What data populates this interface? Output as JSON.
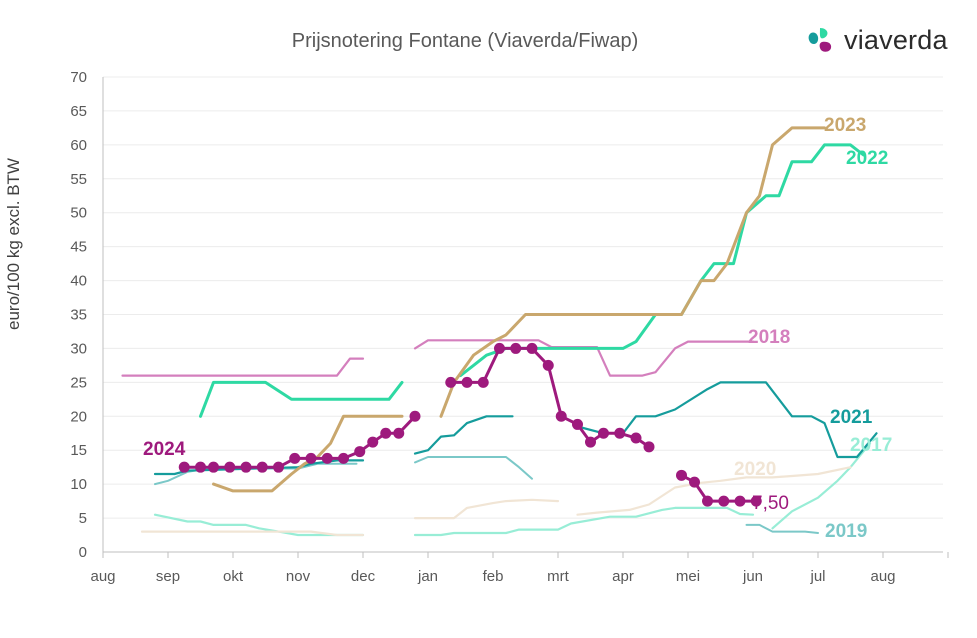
{
  "chart_data": {
    "type": "line",
    "title": "Prijsnotering Fontane (Viaverda/Fiwap)",
    "ylabel": "euro/100 kg excl. BTW",
    "xlabel": "",
    "ylim": [
      0,
      70
    ],
    "yticks": [
      0,
      5,
      10,
      15,
      20,
      25,
      30,
      35,
      40,
      45,
      50,
      55,
      60,
      65,
      70
    ],
    "xlim": [
      0,
      12.9
    ],
    "month_labels": [
      "aug",
      "sep",
      "okt",
      "nov",
      "dec",
      "jan",
      "feb",
      "mrt",
      "apr",
      "mei",
      "jun",
      "jul",
      "aug"
    ],
    "grid": true,
    "logo_text": "viaverda",
    "x_unit": "months from start of august",
    "series": [
      {
        "name": "2018",
        "color": "#d47fbd",
        "width": 2.2,
        "markers": false,
        "segments": [
          [
            [
              0.3,
              26
            ],
            [
              3.6,
              26
            ],
            [
              3.8,
              28.5
            ],
            [
              4.0,
              28.5
            ]
          ],
          [
            [
              4.8,
              30
            ],
            [
              5.0,
              31.2
            ],
            [
              6.7,
              31.2
            ],
            [
              6.9,
              30.2
            ],
            [
              7.6,
              30.2
            ],
            [
              7.8,
              26
            ],
            [
              8.3,
              26
            ],
            [
              8.5,
              26.5
            ],
            [
              8.8,
              30
            ],
            [
              9.0,
              31
            ],
            [
              9.9,
              31
            ],
            [
              10.0,
              31
            ]
          ]
        ]
      },
      {
        "name": "2019",
        "color": "#7bc8c8",
        "width": 2,
        "markers": false,
        "segments": [
          [
            [
              0.8,
              10
            ],
            [
              1.0,
              10.5
            ],
            [
              1.3,
              11.8
            ],
            [
              1.6,
              12.3
            ],
            [
              3.0,
              12.3
            ],
            [
              3.3,
              13
            ],
            [
              3.9,
              13
            ]
          ],
          [
            [
              4.8,
              13.2
            ],
            [
              5.0,
              14
            ],
            [
              6.2,
              14
            ],
            [
              6.4,
              12.5
            ],
            [
              6.6,
              10.8
            ]
          ],
          [
            [
              9.9,
              4
            ],
            [
              10.1,
              4
            ],
            [
              10.3,
              3
            ],
            [
              10.8,
              3
            ],
            [
              11.0,
              2.8
            ]
          ]
        ]
      },
      {
        "name": "2017",
        "color": "#98edd6",
        "width": 2.2,
        "markers": false,
        "segments": [
          [
            [
              0.8,
              5.5
            ],
            [
              1.3,
              4.5
            ],
            [
              1.5,
              4.5
            ],
            [
              1.7,
              4
            ],
            [
              2.2,
              4
            ],
            [
              2.4,
              3.5
            ],
            [
              2.7,
              3
            ],
            [
              3.0,
              2.5
            ],
            [
              4.0,
              2.5
            ]
          ],
          [
            [
              4.8,
              2.5
            ],
            [
              5.2,
              2.5
            ],
            [
              5.4,
              2.8
            ],
            [
              6.2,
              2.8
            ],
            [
              6.4,
              3.3
            ],
            [
              7.0,
              3.3
            ],
            [
              7.2,
              4.2
            ],
            [
              7.8,
              5.2
            ],
            [
              8.2,
              5.2
            ],
            [
              8.6,
              6.2
            ],
            [
              8.8,
              6.5
            ],
            [
              9.6,
              6.5
            ],
            [
              9.8,
              5.6
            ],
            [
              10.0,
              5.5
            ]
          ],
          [
            [
              10.3,
              3.5
            ],
            [
              10.6,
              6
            ],
            [
              11.0,
              8
            ],
            [
              11.3,
              10.5
            ],
            [
              11.5,
              12.5
            ],
            [
              11.8,
              16
            ]
          ]
        ]
      },
      {
        "name": "2020",
        "color": "#f1e5d5",
        "width": 2.2,
        "markers": false,
        "segments": [
          [
            [
              0.6,
              3
            ],
            [
              3.2,
              3
            ],
            [
              3.6,
              2.5
            ],
            [
              4.0,
              2.5
            ]
          ],
          [
            [
              4.8,
              5
            ],
            [
              5.4,
              5
            ],
            [
              5.6,
              6.5
            ],
            [
              6.0,
              7.2
            ],
            [
              6.2,
              7.5
            ],
            [
              6.6,
              7.7
            ],
            [
              7.0,
              7.5
            ]
          ],
          [
            [
              7.3,
              5.5
            ],
            [
              7.6,
              5.8
            ],
            [
              8.1,
              6.2
            ],
            [
              8.4,
              7
            ],
            [
              8.8,
              9.5
            ],
            [
              9.2,
              10.2
            ],
            [
              9.5,
              10.5
            ],
            [
              9.9,
              11
            ],
            [
              10.3,
              11
            ],
            [
              10.6,
              11.2
            ],
            [
              11.0,
              11.5
            ],
            [
              11.5,
              12.5
            ]
          ]
        ]
      },
      {
        "name": "2021",
        "color": "#159c9c",
        "width": 2.2,
        "markers": false,
        "segments": [
          [
            [
              0.8,
              11.5
            ],
            [
              1.1,
              11.5
            ],
            [
              1.3,
              12
            ],
            [
              3.0,
              12.5
            ],
            [
              3.2,
              13
            ],
            [
              3.6,
              13.5
            ],
            [
              4.0,
              13.5
            ]
          ],
          [
            [
              4.8,
              14.5
            ],
            [
              5.0,
              15
            ],
            [
              5.2,
              17
            ],
            [
              5.4,
              17.2
            ],
            [
              5.6,
              19
            ],
            [
              5.9,
              20
            ],
            [
              6.3,
              20
            ]
          ],
          [
            [
              7.3,
              18.5
            ],
            [
              7.7,
              17.5
            ],
            [
              8.0,
              17.5
            ],
            [
              8.2,
              20
            ],
            [
              8.5,
              20
            ],
            [
              8.8,
              21
            ],
            [
              9.3,
              24
            ],
            [
              9.5,
              25
            ],
            [
              10.2,
              25
            ],
            [
              10.6,
              20
            ],
            [
              10.9,
              20
            ],
            [
              11.1,
              19
            ],
            [
              11.3,
              14
            ],
            [
              11.6,
              14
            ],
            [
              11.9,
              17.5
            ]
          ]
        ]
      },
      {
        "name": "2022",
        "color": "#2ed9a3",
        "width": 3,
        "markers": false,
        "segments": [
          [
            [
              1.5,
              20
            ],
            [
              1.7,
              25
            ],
            [
              2.5,
              25
            ],
            [
              2.9,
              22.5
            ],
            [
              4.4,
              22.5
            ],
            [
              4.6,
              25
            ]
          ],
          [
            [
              5.5,
              26
            ],
            [
              5.7,
              27.5
            ],
            [
              5.9,
              29
            ],
            [
              6.2,
              30
            ],
            [
              7.8,
              30
            ],
            [
              8.0,
              30
            ],
            [
              8.2,
              31
            ],
            [
              8.5,
              35
            ],
            [
              8.9,
              35
            ],
            [
              9.2,
              40
            ],
            [
              9.4,
              42.5
            ],
            [
              9.7,
              42.5
            ],
            [
              9.9,
              50
            ],
            [
              10.2,
              52.5
            ],
            [
              10.4,
              52.5
            ],
            [
              10.6,
              57.5
            ],
            [
              10.9,
              57.5
            ],
            [
              11.1,
              60
            ],
            [
              11.5,
              60
            ],
            [
              11.7,
              58.5
            ]
          ]
        ]
      },
      {
        "name": "2023",
        "color": "#c9a76d",
        "width": 3,
        "markers": false,
        "segments": [
          [
            [
              1.7,
              10
            ],
            [
              2.0,
              9
            ],
            [
              2.6,
              9
            ],
            [
              2.9,
              11.5
            ],
            [
              3.1,
              13
            ],
            [
              3.3,
              14
            ],
            [
              3.5,
              16
            ],
            [
              3.7,
              20
            ],
            [
              4.6,
              20
            ]
          ],
          [
            [
              5.2,
              20
            ],
            [
              5.4,
              25
            ],
            [
              5.7,
              29
            ],
            [
              6.0,
              31
            ],
            [
              6.2,
              32
            ],
            [
              6.5,
              35
            ],
            [
              8.9,
              35
            ],
            [
              9.2,
              40
            ],
            [
              9.4,
              40
            ],
            [
              9.6,
              42.5
            ],
            [
              9.9,
              50
            ],
            [
              10.1,
              52.5
            ],
            [
              10.3,
              60
            ],
            [
              10.6,
              62.5
            ],
            [
              11.1,
              62.5
            ]
          ]
        ]
      },
      {
        "name": "2024",
        "color": "#9e1a7d",
        "width": 3,
        "markers": true,
        "segments": [
          [
            [
              1.25,
              12.5
            ],
            [
              1.5,
              12.5
            ],
            [
              1.7,
              12.5
            ],
            [
              1.95,
              12.5
            ],
            [
              2.2,
              12.5
            ],
            [
              2.45,
              12.5
            ],
            [
              2.7,
              12.5
            ],
            [
              2.95,
              13.8
            ],
            [
              3.2,
              13.8
            ],
            [
              3.45,
              13.8
            ],
            [
              3.7,
              13.8
            ],
            [
              3.95,
              14.8
            ],
            [
              4.15,
              16.2
            ],
            [
              4.35,
              17.5
            ],
            [
              4.55,
              17.5
            ],
            [
              4.8,
              20
            ]
          ],
          [
            [
              5.35,
              25
            ],
            [
              5.6,
              25
            ],
            [
              5.85,
              25
            ],
            [
              6.1,
              30
            ],
            [
              6.35,
              30
            ],
            [
              6.6,
              30
            ],
            [
              6.85,
              27.5
            ],
            [
              7.05,
              20
            ],
            [
              7.3,
              18.8
            ],
            [
              7.5,
              16.2
            ],
            [
              7.7,
              17.5
            ],
            [
              7.95,
              17.5
            ],
            [
              8.2,
              16.8
            ],
            [
              8.4,
              15.5
            ]
          ],
          [
            [
              8.9,
              11.3
            ],
            [
              9.1,
              10.3
            ],
            [
              9.3,
              7.5
            ],
            [
              9.55,
              7.5
            ],
            [
              9.8,
              7.5
            ],
            [
              10.05,
              7.5
            ]
          ]
        ]
      }
    ],
    "annotations": [
      {
        "text": "2023",
        "series": "2023"
      },
      {
        "text": "2022",
        "series": "2022"
      },
      {
        "text": "2018",
        "series": "2018"
      },
      {
        "text": "2021",
        "series": "2021"
      },
      {
        "text": "2017",
        "series": "2017"
      },
      {
        "text": "2024",
        "series": "2024"
      },
      {
        "text": "2020",
        "series": "2020"
      },
      {
        "text": "7,50",
        "series": "2024"
      },
      {
        "text": "2019",
        "series": "2019"
      }
    ]
  }
}
